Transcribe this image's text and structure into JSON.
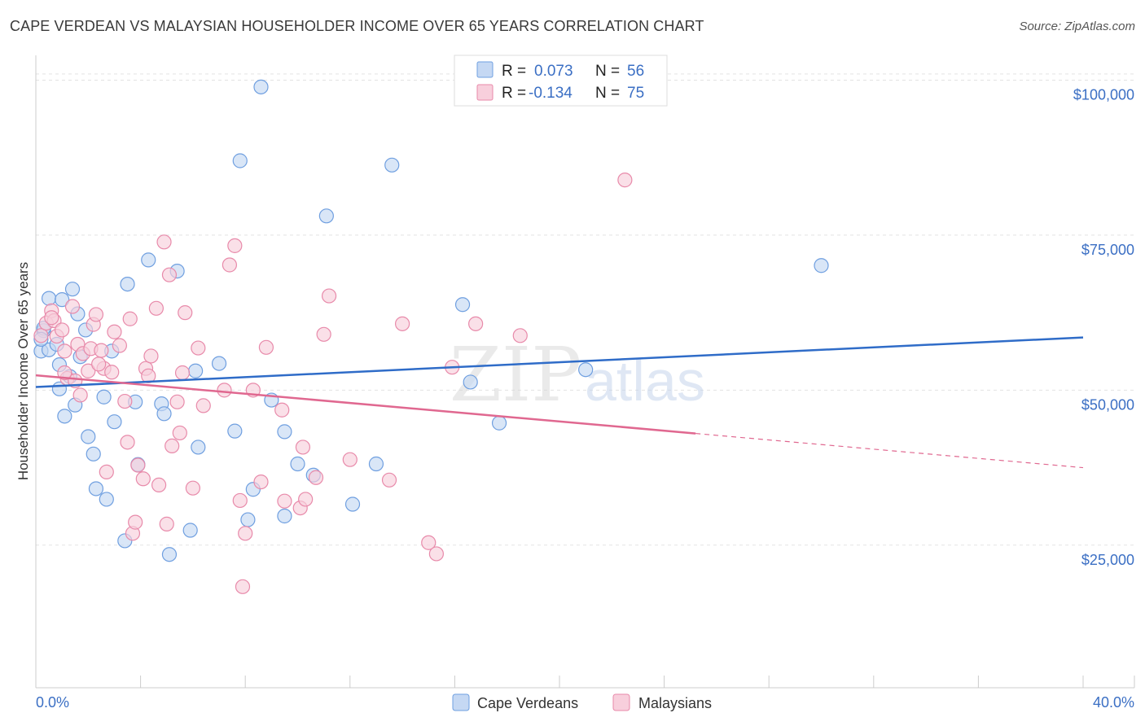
{
  "header": {
    "title": "CAPE VERDEAN VS MALAYSIAN HOUSEHOLDER INCOME OVER 65 YEARS CORRELATION CHART",
    "source": "Source: ZipAtlas.com"
  },
  "watermark": {
    "part1": "ZIP",
    "part2": "atlas"
  },
  "colors": {
    "blue": "#6f9fe0",
    "blue_fill": "#c5d8f3",
    "blue_line": "#2f6cc8",
    "pink": "#e88aaa",
    "pink_fill": "#f8cfdc",
    "pink_line": "#e06890",
    "axis_text": "#3b6fc4"
  },
  "legend": {
    "rows": [
      {
        "r_label": "R =",
        "r_value": "0.073",
        "n_label": "N =",
        "n_value": "56"
      },
      {
        "r_label": "R =",
        "r_value": "-0.134",
        "n_label": "N =",
        "n_value": "75"
      }
    ]
  },
  "bottom_legend": {
    "items": [
      "Cape Verdeans",
      "Malaysians"
    ]
  },
  "chart_data": {
    "type": "scatter",
    "ylabel": "Householder Income Over 65 years",
    "xlabel": "",
    "xlim": [
      0,
      40
    ],
    "ylim": [
      2000,
      104000
    ],
    "x_tick_labels": [
      "0.0%",
      "40.0%"
    ],
    "y_ticks": [
      {
        "value": 25000,
        "label": "$25,000"
      },
      {
        "value": 50000,
        "label": "$50,000"
      },
      {
        "value": 75000,
        "label": "$75,000"
      },
      {
        "value": 100000,
        "label": "$100,000"
      }
    ],
    "grid": true,
    "legend_position": "top-center",
    "series": [
      {
        "name": "Cape Verdeans",
        "color": "#6f9fe0",
        "trend": {
          "x0": 0,
          "y0": 50500,
          "x1": 40,
          "y1": 58500,
          "dashed_from": null
        },
        "points": [
          [
            0.2,
            56300
          ],
          [
            0.3,
            59600
          ],
          [
            0.5,
            56500
          ],
          [
            0.5,
            64800
          ],
          [
            0.8,
            57400
          ],
          [
            0.9,
            54100
          ],
          [
            0.9,
            50200
          ],
          [
            1.0,
            64600
          ],
          [
            1.1,
            45800
          ],
          [
            1.3,
            52200
          ],
          [
            1.4,
            66300
          ],
          [
            1.5,
            47600
          ],
          [
            1.6,
            62300
          ],
          [
            1.7,
            55400
          ],
          [
            1.9,
            59700
          ],
          [
            2.0,
            42500
          ],
          [
            2.2,
            39700
          ],
          [
            2.3,
            34100
          ],
          [
            2.6,
            48900
          ],
          [
            2.9,
            56300
          ],
          [
            2.7,
            32400
          ],
          [
            3.0,
            44900
          ],
          [
            3.4,
            25700
          ],
          [
            3.5,
            67100
          ],
          [
            3.8,
            48100
          ],
          [
            3.9,
            38000
          ],
          [
            4.3,
            71000
          ],
          [
            4.8,
            47800
          ],
          [
            4.9,
            46200
          ],
          [
            5.1,
            23500
          ],
          [
            5.4,
            69200
          ],
          [
            5.9,
            27400
          ],
          [
            6.1,
            53100
          ],
          [
            6.2,
            40800
          ],
          [
            7.0,
            54300
          ],
          [
            7.6,
            43400
          ],
          [
            7.8,
            87000
          ],
          [
            8.1,
            29100
          ],
          [
            8.3,
            34000
          ],
          [
            8.6,
            98900
          ],
          [
            9.0,
            48400
          ],
          [
            9.5,
            43300
          ],
          [
            9.5,
            29700
          ],
          [
            10.0,
            38100
          ],
          [
            10.6,
            36300
          ],
          [
            11.1,
            78100
          ],
          [
            12.1,
            31600
          ],
          [
            13.0,
            38100
          ],
          [
            13.6,
            86300
          ],
          [
            16.3,
            63800
          ],
          [
            16.6,
            51300
          ],
          [
            17.7,
            44700
          ],
          [
            21.0,
            53300
          ],
          [
            30.0,
            70100
          ],
          [
            0.3,
            60000
          ],
          [
            0.2,
            58200
          ]
        ]
      },
      {
        "name": "Malaysians",
        "color": "#e88aaa",
        "trend": {
          "x0": 0,
          "y0": 52400,
          "x1": 40,
          "y1": 37500,
          "dashed_from": 25.2
        },
        "points": [
          [
            0.2,
            58800
          ],
          [
            0.4,
            60800
          ],
          [
            0.6,
            62800
          ],
          [
            0.7,
            61200
          ],
          [
            0.8,
            58700
          ],
          [
            1.0,
            59700
          ],
          [
            1.1,
            56300
          ],
          [
            1.2,
            51900
          ],
          [
            1.4,
            63500
          ],
          [
            1.6,
            57400
          ],
          [
            1.7,
            49200
          ],
          [
            1.8,
            55900
          ],
          [
            2.0,
            53100
          ],
          [
            2.1,
            56700
          ],
          [
            2.2,
            60600
          ],
          [
            2.3,
            62200
          ],
          [
            2.5,
            56400
          ],
          [
            2.6,
            53500
          ],
          [
            2.7,
            36800
          ],
          [
            2.9,
            52900
          ],
          [
            3.0,
            59400
          ],
          [
            3.2,
            57200
          ],
          [
            3.4,
            48200
          ],
          [
            3.5,
            41600
          ],
          [
            3.6,
            61500
          ],
          [
            3.7,
            26900
          ],
          [
            3.8,
            28700
          ],
          [
            3.9,
            37900
          ],
          [
            4.1,
            35700
          ],
          [
            4.2,
            53500
          ],
          [
            4.3,
            52300
          ],
          [
            4.4,
            55500
          ],
          [
            4.6,
            63200
          ],
          [
            4.7,
            34700
          ],
          [
            4.9,
            73900
          ],
          [
            5.0,
            28400
          ],
          [
            5.1,
            68600
          ],
          [
            5.2,
            41000
          ],
          [
            5.4,
            48100
          ],
          [
            5.5,
            43100
          ],
          [
            5.6,
            52800
          ],
          [
            5.7,
            62500
          ],
          [
            6.0,
            34200
          ],
          [
            6.2,
            56800
          ],
          [
            6.4,
            47500
          ],
          [
            7.2,
            50000
          ],
          [
            7.4,
            70200
          ],
          [
            7.6,
            73300
          ],
          [
            7.8,
            32200
          ],
          [
            7.9,
            18300
          ],
          [
            8.0,
            26900
          ],
          [
            8.3,
            50000
          ],
          [
            8.6,
            35200
          ],
          [
            8.8,
            56900
          ],
          [
            9.4,
            46800
          ],
          [
            9.5,
            32100
          ],
          [
            10.1,
            31000
          ],
          [
            10.2,
            40800
          ],
          [
            10.3,
            32400
          ],
          [
            10.7,
            35900
          ],
          [
            11.0,
            59000
          ],
          [
            11.2,
            65200
          ],
          [
            12.0,
            38800
          ],
          [
            13.5,
            35500
          ],
          [
            14.0,
            60700
          ],
          [
            15.0,
            25400
          ],
          [
            15.3,
            23600
          ],
          [
            15.9,
            53700
          ],
          [
            16.8,
            60700
          ],
          [
            18.5,
            58800
          ],
          [
            22.5,
            83900
          ],
          [
            1.5,
            51500
          ],
          [
            2.4,
            54200
          ],
          [
            1.1,
            52800
          ],
          [
            0.6,
            61700
          ]
        ]
      }
    ]
  }
}
